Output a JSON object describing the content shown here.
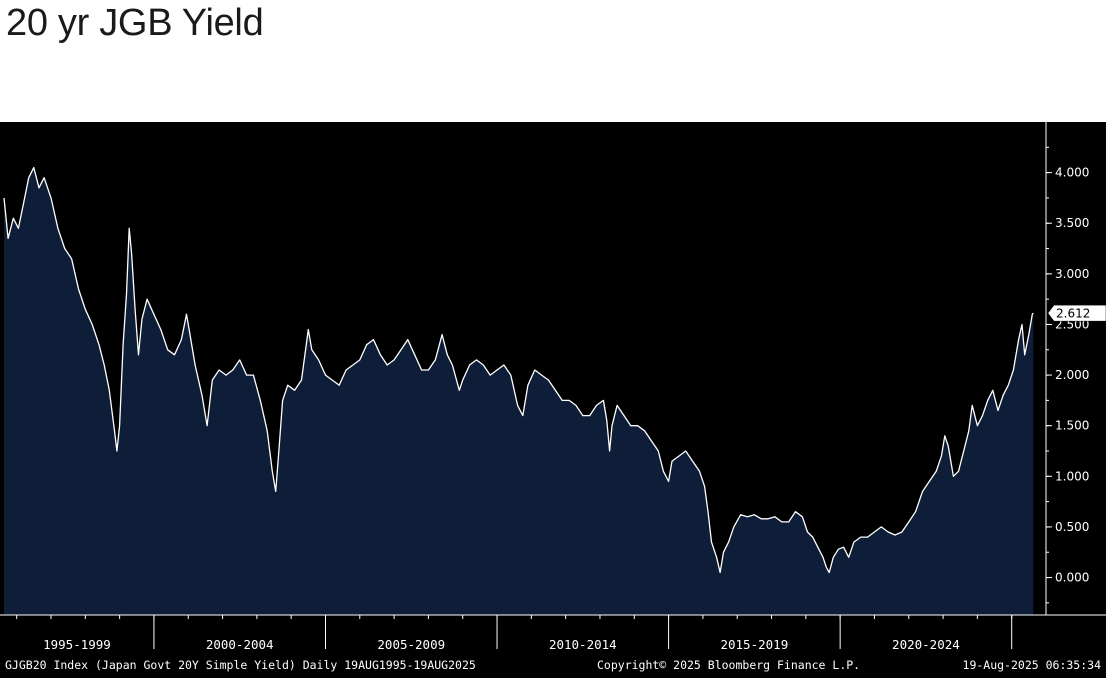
{
  "title": "20 yr JGB Yield",
  "colors": {
    "background": "#000000",
    "area_fill": "#0f1e38",
    "line": "#ffffff",
    "axis": "#ffffff"
  },
  "footer": {
    "left": "GJGB20 Index (Japan Govt 20Y Simple Yield) Daily 19AUG1995-19AUG2025",
    "center": "Copyright© 2025 Bloomberg Finance L.P.",
    "right": "19-Aug-2025 06:35:34"
  },
  "chart_data": {
    "type": "area",
    "title": "20 yr JGB Yield",
    "xlabel": "",
    "ylabel": "",
    "x_period_labels": [
      "1995-1999",
      "2000-2004",
      "2005-2009",
      "2010-2014",
      "2015-2019",
      "2020-2024"
    ],
    "y_ticks": [
      "0.000",
      "0.500",
      "1.000",
      "1.500",
      "2.000",
      "2.500",
      "3.000",
      "3.500",
      "4.000"
    ],
    "ylim": [
      -0.37,
      4.5
    ],
    "xlim": [
      1995.63,
      2026.0
    ],
    "y_axis_side": "right",
    "grid": false,
    "last_value_label": "2.612",
    "series": [
      {
        "values": [
          [
            1995.63,
            3.75
          ],
          [
            1995.75,
            3.35
          ],
          [
            1995.9,
            3.55
          ],
          [
            1996.05,
            3.45
          ],
          [
            1996.2,
            3.7
          ],
          [
            1996.35,
            3.95
          ],
          [
            1996.5,
            4.05
          ],
          [
            1996.65,
            3.85
          ],
          [
            1996.8,
            3.95
          ],
          [
            1997.0,
            3.75
          ],
          [
            1997.2,
            3.45
          ],
          [
            1997.4,
            3.25
          ],
          [
            1997.6,
            3.15
          ],
          [
            1997.8,
            2.85
          ],
          [
            1998.0,
            2.65
          ],
          [
            1998.2,
            2.5
          ],
          [
            1998.4,
            2.3
          ],
          [
            1998.55,
            2.1
          ],
          [
            1998.7,
            1.85
          ],
          [
            1998.85,
            1.45
          ],
          [
            1998.92,
            1.25
          ],
          [
            1999.0,
            1.5
          ],
          [
            1999.1,
            2.3
          ],
          [
            1999.2,
            2.8
          ],
          [
            1999.28,
            3.45
          ],
          [
            1999.35,
            3.2
          ],
          [
            1999.45,
            2.65
          ],
          [
            1999.55,
            2.2
          ],
          [
            1999.65,
            2.55
          ],
          [
            1999.8,
            2.75
          ],
          [
            2000.0,
            2.6
          ],
          [
            2000.2,
            2.45
          ],
          [
            2000.4,
            2.25
          ],
          [
            2000.6,
            2.2
          ],
          [
            2000.8,
            2.35
          ],
          [
            2000.95,
            2.6
          ],
          [
            2001.05,
            2.4
          ],
          [
            2001.2,
            2.1
          ],
          [
            2001.4,
            1.8
          ],
          [
            2001.55,
            1.5
          ],
          [
            2001.7,
            1.95
          ],
          [
            2001.9,
            2.05
          ],
          [
            2002.1,
            2.0
          ],
          [
            2002.3,
            2.05
          ],
          [
            2002.5,
            2.15
          ],
          [
            2002.7,
            2.0
          ],
          [
            2002.9,
            2.0
          ],
          [
            2003.1,
            1.75
          ],
          [
            2003.3,
            1.45
          ],
          [
            2003.45,
            1.05
          ],
          [
            2003.55,
            0.85
          ],
          [
            2003.62,
            1.15
          ],
          [
            2003.75,
            1.75
          ],
          [
            2003.9,
            1.9
          ],
          [
            2004.1,
            1.85
          ],
          [
            2004.3,
            1.95
          ],
          [
            2004.5,
            2.45
          ],
          [
            2004.6,
            2.25
          ],
          [
            2004.8,
            2.15
          ],
          [
            2005.0,
            2.0
          ],
          [
            2005.2,
            1.95
          ],
          [
            2005.4,
            1.9
          ],
          [
            2005.6,
            2.05
          ],
          [
            2005.8,
            2.1
          ],
          [
            2006.0,
            2.15
          ],
          [
            2006.2,
            2.3
          ],
          [
            2006.4,
            2.35
          ],
          [
            2006.6,
            2.2
          ],
          [
            2006.8,
            2.1
          ],
          [
            2007.0,
            2.15
          ],
          [
            2007.2,
            2.25
          ],
          [
            2007.4,
            2.35
          ],
          [
            2007.6,
            2.2
          ],
          [
            2007.8,
            2.05
          ],
          [
            2008.0,
            2.05
          ],
          [
            2008.2,
            2.15
          ],
          [
            2008.4,
            2.4
          ],
          [
            2008.55,
            2.2
          ],
          [
            2008.7,
            2.1
          ],
          [
            2008.9,
            1.85
          ],
          [
            2009.0,
            1.95
          ],
          [
            2009.2,
            2.1
          ],
          [
            2009.4,
            2.15
          ],
          [
            2009.6,
            2.1
          ],
          [
            2009.8,
            2.0
          ],
          [
            2010.0,
            2.05
          ],
          [
            2010.2,
            2.1
          ],
          [
            2010.4,
            2.0
          ],
          [
            2010.6,
            1.7
          ],
          [
            2010.75,
            1.6
          ],
          [
            2010.9,
            1.9
          ],
          [
            2011.1,
            2.05
          ],
          [
            2011.3,
            2.0
          ],
          [
            2011.5,
            1.95
          ],
          [
            2011.7,
            1.85
          ],
          [
            2011.9,
            1.75
          ],
          [
            2012.1,
            1.75
          ],
          [
            2012.3,
            1.7
          ],
          [
            2012.5,
            1.6
          ],
          [
            2012.7,
            1.6
          ],
          [
            2012.9,
            1.7
          ],
          [
            2013.1,
            1.75
          ],
          [
            2013.2,
            1.55
          ],
          [
            2013.28,
            1.25
          ],
          [
            2013.35,
            1.5
          ],
          [
            2013.5,
            1.7
          ],
          [
            2013.7,
            1.6
          ],
          [
            2013.9,
            1.5
          ],
          [
            2014.1,
            1.5
          ],
          [
            2014.3,
            1.45
          ],
          [
            2014.5,
            1.35
          ],
          [
            2014.7,
            1.25
          ],
          [
            2014.85,
            1.05
          ],
          [
            2015.0,
            0.95
          ],
          [
            2015.1,
            1.15
          ],
          [
            2015.3,
            1.2
          ],
          [
            2015.5,
            1.25
          ],
          [
            2015.7,
            1.15
          ],
          [
            2015.9,
            1.05
          ],
          [
            2016.05,
            0.9
          ],
          [
            2016.15,
            0.65
          ],
          [
            2016.25,
            0.35
          ],
          [
            2016.4,
            0.2
          ],
          [
            2016.5,
            0.05
          ],
          [
            2016.6,
            0.25
          ],
          [
            2016.75,
            0.35
          ],
          [
            2016.9,
            0.5
          ],
          [
            2017.1,
            0.62
          ],
          [
            2017.3,
            0.6
          ],
          [
            2017.5,
            0.62
          ],
          [
            2017.7,
            0.58
          ],
          [
            2017.9,
            0.58
          ],
          [
            2018.1,
            0.6
          ],
          [
            2018.3,
            0.55
          ],
          [
            2018.5,
            0.55
          ],
          [
            2018.7,
            0.65
          ],
          [
            2018.9,
            0.6
          ],
          [
            2019.05,
            0.45
          ],
          [
            2019.2,
            0.4
          ],
          [
            2019.35,
            0.3
          ],
          [
            2019.5,
            0.2
          ],
          [
            2019.6,
            0.1
          ],
          [
            2019.68,
            0.05
          ],
          [
            2019.8,
            0.2
          ],
          [
            2019.95,
            0.28
          ],
          [
            2020.1,
            0.3
          ],
          [
            2020.25,
            0.2
          ],
          [
            2020.4,
            0.35
          ],
          [
            2020.6,
            0.4
          ],
          [
            2020.8,
            0.4
          ],
          [
            2021.0,
            0.45
          ],
          [
            2021.2,
            0.5
          ],
          [
            2021.4,
            0.45
          ],
          [
            2021.6,
            0.42
          ],
          [
            2021.8,
            0.45
          ],
          [
            2022.0,
            0.55
          ],
          [
            2022.2,
            0.65
          ],
          [
            2022.4,
            0.85
          ],
          [
            2022.6,
            0.95
          ],
          [
            2022.8,
            1.05
          ],
          [
            2022.95,
            1.2
          ],
          [
            2023.05,
            1.4
          ],
          [
            2023.15,
            1.3
          ],
          [
            2023.3,
            1.0
          ],
          [
            2023.45,
            1.05
          ],
          [
            2023.6,
            1.25
          ],
          [
            2023.75,
            1.45
          ],
          [
            2023.85,
            1.7
          ],
          [
            2024.0,
            1.5
          ],
          [
            2024.15,
            1.6
          ],
          [
            2024.3,
            1.75
          ],
          [
            2024.45,
            1.85
          ],
          [
            2024.6,
            1.65
          ],
          [
            2024.75,
            1.8
          ],
          [
            2024.9,
            1.9
          ],
          [
            2025.05,
            2.05
          ],
          [
            2025.2,
            2.35
          ],
          [
            2025.3,
            2.5
          ],
          [
            2025.38,
            2.2
          ],
          [
            2025.5,
            2.4
          ],
          [
            2025.6,
            2.6
          ],
          [
            2025.63,
            2.612
          ]
        ]
      }
    ]
  }
}
